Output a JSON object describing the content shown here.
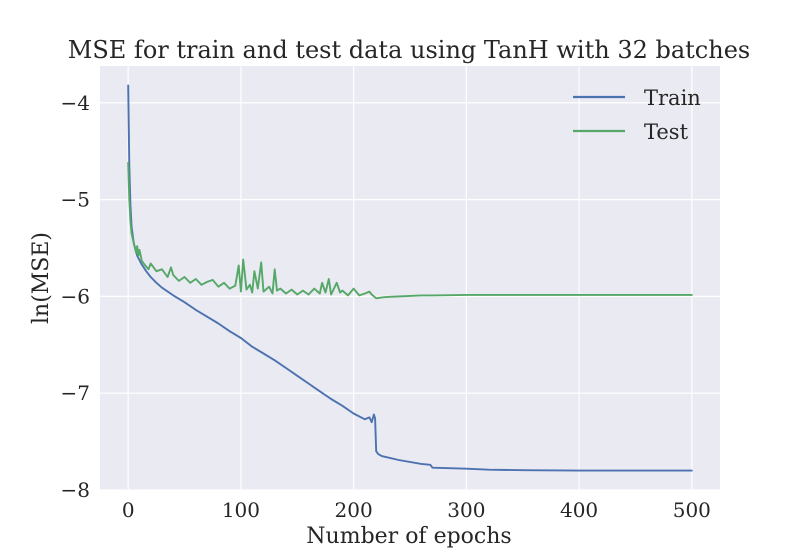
{
  "chart_data": {
    "type": "line",
    "title": "MSE for train and test data using TanH with 32 batches",
    "xlabel": "Number of epochs",
    "ylabel": "ln(MSE)",
    "xlim": [
      -25,
      525
    ],
    "ylim": [
      -8.0,
      -3.62
    ],
    "xticks": [
      0,
      100,
      200,
      300,
      400,
      500
    ],
    "xtick_labels": [
      "0",
      "100",
      "200",
      "300",
      "400",
      "500"
    ],
    "yticks": [
      -4,
      -5,
      -6,
      -7,
      -8
    ],
    "ytick_labels": [
      "−4",
      "−5",
      "−6",
      "−7",
      "−8"
    ],
    "grid": true,
    "legend_position": "top-right",
    "colors": {
      "background": "#eaeaf2",
      "grid": "#ffffff",
      "train": "#4c72b0",
      "test": "#55a868"
    },
    "series": [
      {
        "name": "Train",
        "color": "#4c72b0",
        "x": [
          0,
          1,
          2,
          3,
          5,
          8,
          12,
          16,
          20,
          25,
          30,
          40,
          50,
          60,
          70,
          80,
          90,
          100,
          110,
          120,
          130,
          140,
          150,
          160,
          170,
          180,
          190,
          200,
          210,
          214,
          216,
          218,
          219,
          220,
          222,
          225,
          240,
          260,
          268,
          270,
          300,
          320,
          350,
          400,
          450,
          500
        ],
        "y": [
          -3.82,
          -4.65,
          -5.05,
          -5.28,
          -5.45,
          -5.58,
          -5.67,
          -5.74,
          -5.8,
          -5.86,
          -5.91,
          -5.99,
          -6.06,
          -6.14,
          -6.21,
          -6.28,
          -6.36,
          -6.43,
          -6.52,
          -6.59,
          -6.66,
          -6.74,
          -6.82,
          -6.9,
          -6.98,
          -7.06,
          -7.13,
          -7.21,
          -7.27,
          -7.25,
          -7.3,
          -7.22,
          -7.26,
          -7.6,
          -7.63,
          -7.65,
          -7.69,
          -7.73,
          -7.74,
          -7.77,
          -7.78,
          -7.79,
          -7.795,
          -7.8,
          -7.8,
          -7.8
        ]
      },
      {
        "name": "Test",
        "color": "#55a868",
        "x": [
          0,
          1,
          2,
          3,
          5,
          7,
          8,
          9,
          10,
          12,
          15,
          18,
          20,
          25,
          30,
          35,
          38,
          40,
          45,
          50,
          55,
          60,
          65,
          70,
          75,
          80,
          85,
          90,
          95,
          98,
          100,
          102,
          105,
          108,
          110,
          112,
          115,
          118,
          120,
          125,
          128,
          130,
          132,
          135,
          140,
          145,
          150,
          155,
          160,
          165,
          170,
          172,
          175,
          178,
          180,
          185,
          188,
          190,
          195,
          200,
          205,
          210,
          214,
          216,
          220,
          225,
          230,
          240,
          260,
          270,
          300,
          350,
          400,
          450,
          500
        ],
        "y": [
          -4.62,
          -5.0,
          -5.22,
          -5.35,
          -5.45,
          -5.55,
          -5.48,
          -5.58,
          -5.52,
          -5.63,
          -5.68,
          -5.72,
          -5.66,
          -5.74,
          -5.72,
          -5.8,
          -5.7,
          -5.78,
          -5.84,
          -5.8,
          -5.86,
          -5.82,
          -5.88,
          -5.85,
          -5.83,
          -5.9,
          -5.86,
          -5.92,
          -5.89,
          -5.68,
          -5.95,
          -5.62,
          -5.93,
          -5.88,
          -5.96,
          -5.74,
          -5.92,
          -5.65,
          -5.95,
          -5.9,
          -5.97,
          -5.72,
          -5.94,
          -5.92,
          -5.97,
          -5.93,
          -5.98,
          -5.94,
          -5.98,
          -5.92,
          -5.97,
          -5.86,
          -5.96,
          -5.82,
          -5.98,
          -5.86,
          -5.96,
          -5.94,
          -5.99,
          -5.92,
          -5.99,
          -5.97,
          -5.95,
          -5.98,
          -6.02,
          -6.01,
          -6.005,
          -6.0,
          -5.99,
          -5.99,
          -5.985,
          -5.985,
          -5.985,
          -5.985,
          -5.985
        ]
      }
    ]
  }
}
